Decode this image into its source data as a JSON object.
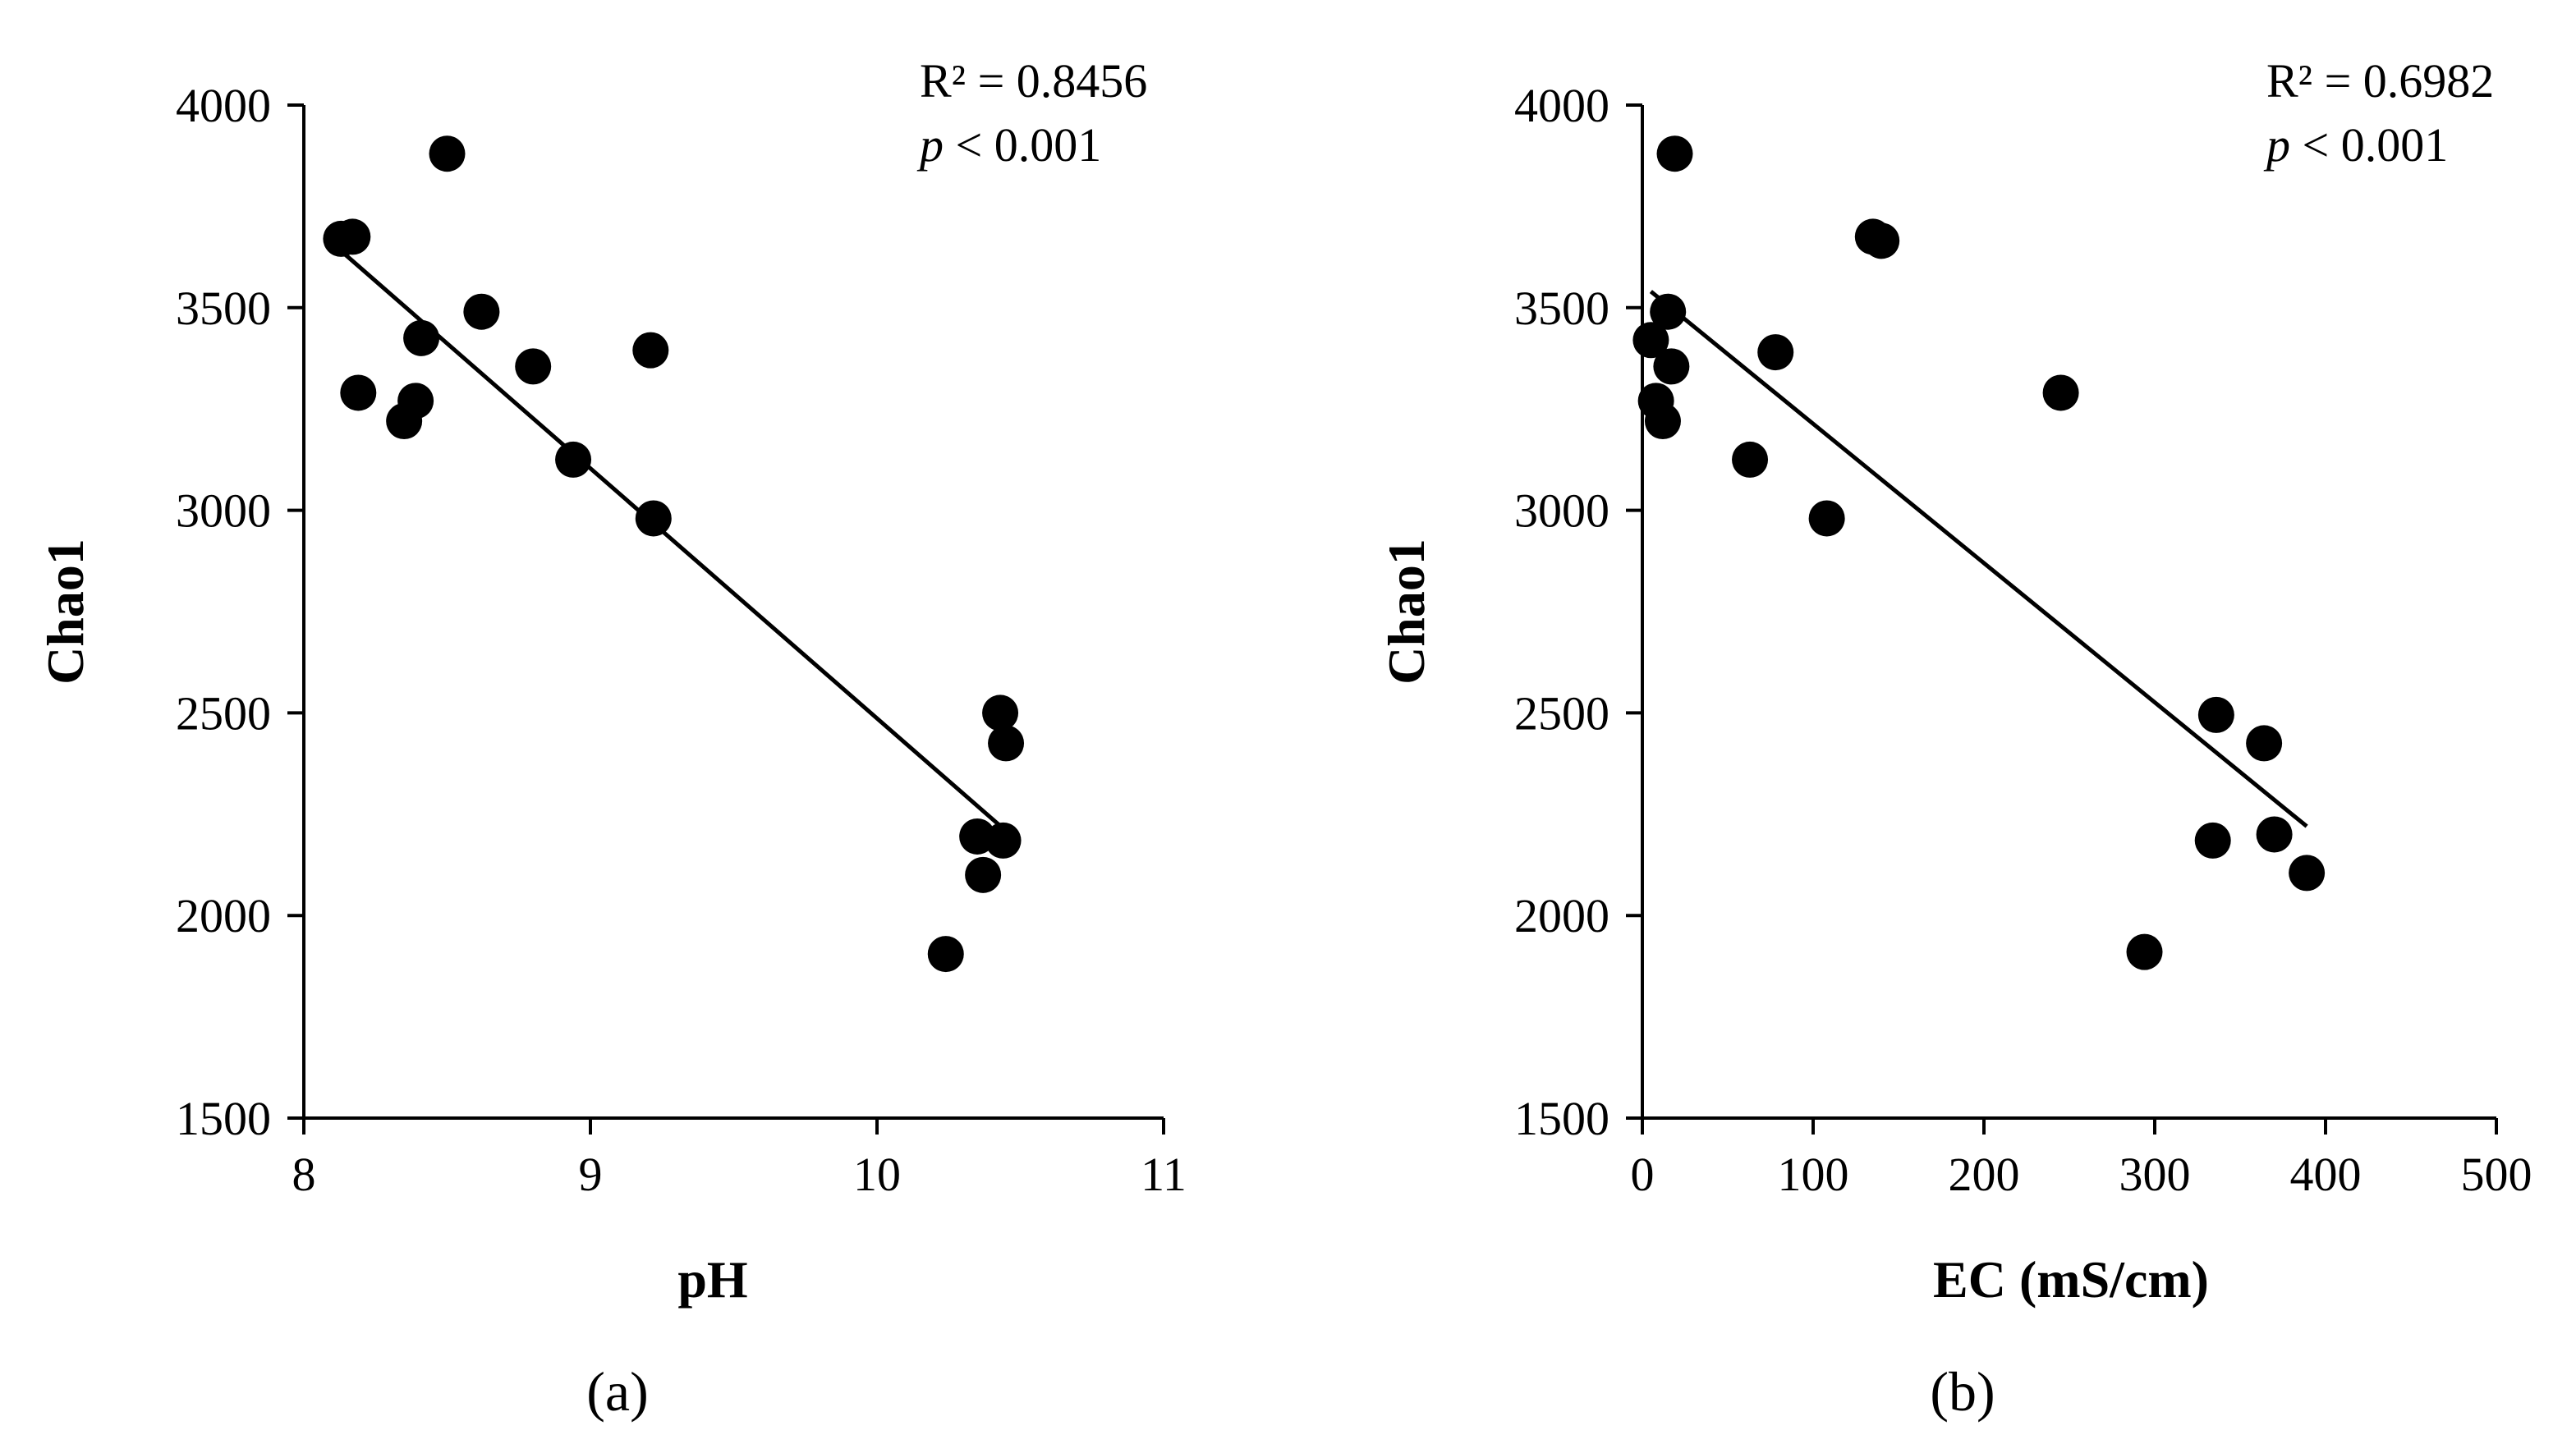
{
  "colors": {
    "ink": "#000000",
    "background": "#ffffff"
  },
  "chart_data": [
    {
      "type": "scatter",
      "panel_label": "(a)",
      "title": "",
      "xlabel": "pH",
      "ylabel": "Chao1",
      "xlim": [
        8,
        11
      ],
      "ylim": [
        1500,
        4000
      ],
      "x_ticks": [
        8,
        9,
        10,
        11
      ],
      "y_ticks": [
        1500,
        2000,
        2500,
        3000,
        3500,
        4000
      ],
      "x_tick_labels": [
        "8",
        "9",
        "10",
        "11"
      ],
      "y_tick_labels": [
        "1500",
        "2000",
        "2500",
        "3000",
        "3500",
        "4000"
      ],
      "grid": false,
      "legend": "none",
      "stats": {
        "r2": "R² = 0.8456",
        "p_italic": "p",
        "p_rest": " < 0.001"
      },
      "series": [
        {
          "name": "samples",
          "points": [
            {
              "x": 8.13,
              "y": 3670
            },
            {
              "x": 8.17,
              "y": 3675
            },
            {
              "x": 8.5,
              "y": 3880
            },
            {
              "x": 8.19,
              "y": 3290
            },
            {
              "x": 8.35,
              "y": 3220
            },
            {
              "x": 8.39,
              "y": 3270
            },
            {
              "x": 8.41,
              "y": 3425
            },
            {
              "x": 8.62,
              "y": 3490
            },
            {
              "x": 8.8,
              "y": 3355
            },
            {
              "x": 8.94,
              "y": 3125
            },
            {
              "x": 9.21,
              "y": 3395
            },
            {
              "x": 9.22,
              "y": 2980
            },
            {
              "x": 10.24,
              "y": 1905
            },
            {
              "x": 10.35,
              "y": 2195
            },
            {
              "x": 10.37,
              "y": 2100
            },
            {
              "x": 10.43,
              "y": 2500
            },
            {
              "x": 10.45,
              "y": 2425
            },
            {
              "x": 10.44,
              "y": 2185
            }
          ]
        }
      ],
      "trendline": {
        "x1": 8.13,
        "y1": 3640,
        "x2": 10.44,
        "y2": 2215
      }
    },
    {
      "type": "scatter",
      "panel_label": "(b)",
      "title": "",
      "xlabel": "EC (mS/cm)",
      "ylabel": "Chao1",
      "xlim": [
        0,
        500
      ],
      "ylim": [
        1500,
        4000
      ],
      "x_ticks": [
        0,
        100,
        200,
        300,
        400,
        500
      ],
      "y_ticks": [
        1500,
        2000,
        2500,
        3000,
        3500,
        4000
      ],
      "x_tick_labels": [
        "0",
        "100",
        "200",
        "300",
        "400",
        "500"
      ],
      "y_tick_labels": [
        "1500",
        "2000",
        "2500",
        "3000",
        "3500",
        "4000"
      ],
      "grid": false,
      "legend": "none",
      "stats": {
        "r2": "R² = 0.6982",
        "p_italic": "p",
        "p_rest": " < 0.001"
      },
      "series": [
        {
          "name": "samples",
          "points": [
            {
              "x": 19,
              "y": 3880
            },
            {
              "x": 135,
              "y": 3675
            },
            {
              "x": 140,
              "y": 3665
            },
            {
              "x": 15,
              "y": 3490
            },
            {
              "x": 5,
              "y": 3420
            },
            {
              "x": 17,
              "y": 3355
            },
            {
              "x": 78,
              "y": 3390
            },
            {
              "x": 8,
              "y": 3270
            },
            {
              "x": 12,
              "y": 3220
            },
            {
              "x": 63,
              "y": 3125
            },
            {
              "x": 108,
              "y": 2980
            },
            {
              "x": 245,
              "y": 3290
            },
            {
              "x": 336,
              "y": 2495
            },
            {
              "x": 364,
              "y": 2425
            },
            {
              "x": 334,
              "y": 2185
            },
            {
              "x": 370,
              "y": 2200
            },
            {
              "x": 389,
              "y": 2105
            },
            {
              "x": 294,
              "y": 1910
            }
          ]
        }
      ],
      "trendline": {
        "x1": 5,
        "y1": 3540,
        "x2": 389,
        "y2": 2220
      }
    }
  ]
}
